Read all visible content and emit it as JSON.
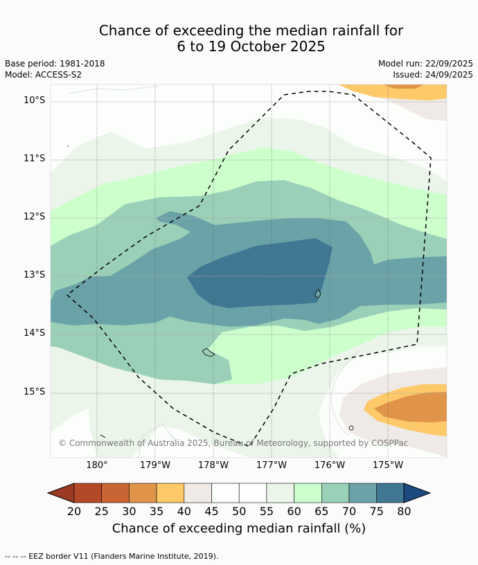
{
  "title": {
    "line1": "Chance of exceeding the median rainfall for",
    "line2": "6 to 19 October 2025"
  },
  "meta": {
    "base_period": "Base period: 1981-2018",
    "model": "Model: ACCESS-S2",
    "model_run": "Model run: 22/09/2025",
    "issued": "Issued: 24/09/2025"
  },
  "map": {
    "lat_labels": [
      "10°S",
      "11°S",
      "12°S",
      "13°S",
      "14°S",
      "15°S"
    ],
    "lon_labels": [
      "180°",
      "179°W",
      "178°W",
      "177°W",
      "176°W",
      "175°W"
    ],
    "copyright": "© Commonwealth of Australia 2025, Bureau of Meteorology, supported by COSPPac"
  },
  "colorbar": {
    "ticks": [
      "20",
      "25",
      "30",
      "35",
      "40",
      "45",
      "50",
      "55",
      "60",
      "65",
      "70",
      "75",
      "80"
    ],
    "colors": [
      "#9b3b24",
      "#b4492a",
      "#c96535",
      "#e0944a",
      "#fdc969",
      "#efeae6",
      "#fcfefc",
      "#fcfefc",
      "#ebf5ea",
      "#ccffcc",
      "#9ad0b8",
      "#6aa2a8",
      "#407793",
      "#1c4a80"
    ],
    "label": "Chance of exceeding median rainfall (%)"
  },
  "footnote": "--  --  -- EEZ border V11 (Flanders Marine Institute, 2019)."
}
